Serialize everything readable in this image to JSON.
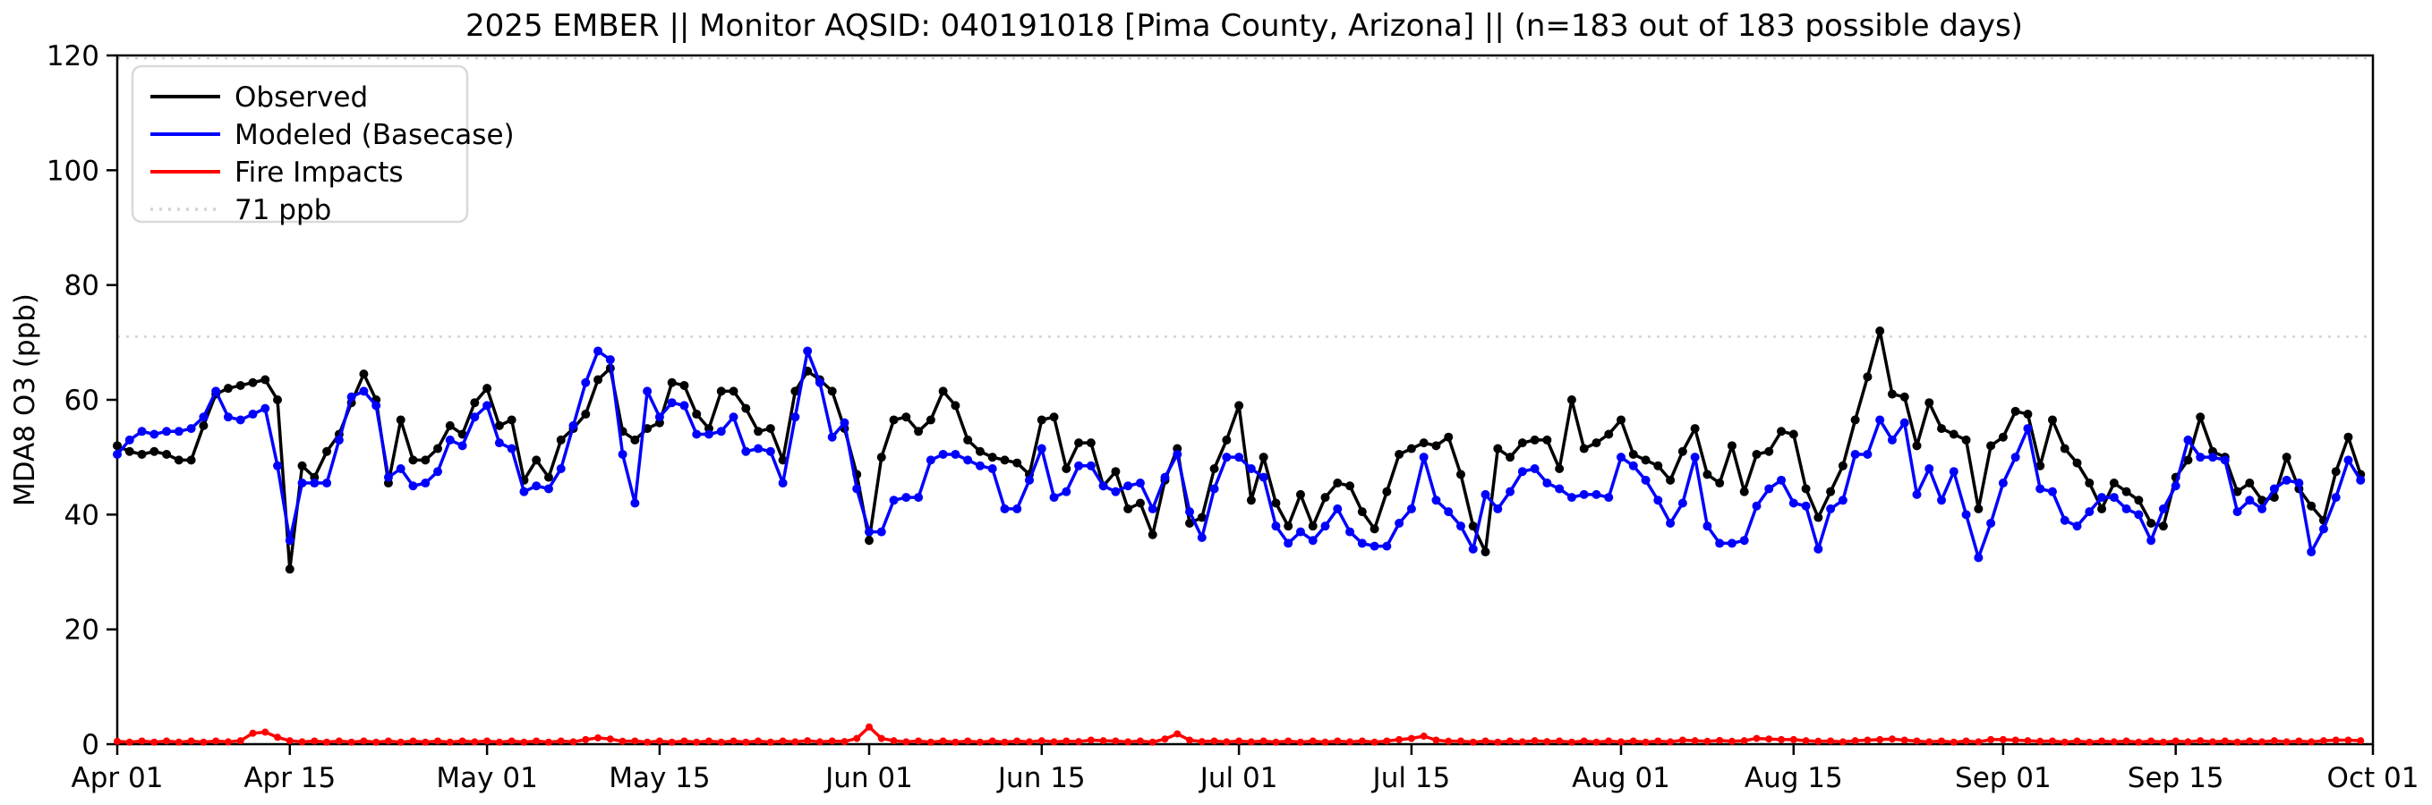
{
  "chart_data": {
    "type": "line",
    "title": "2025 EMBER || Monitor AQSID: 040191018 [Pima County, Arizona] || (n=183 out of 183 possible days)",
    "ylabel": "MDA8 O3 (ppb)",
    "xlabel": "",
    "ylim": [
      0,
      120
    ],
    "y_ticks": [
      0,
      20,
      40,
      60,
      80,
      100,
      120
    ],
    "x_start_date": "Apr 01",
    "x_end_date": "Sep 30",
    "x_total_days": 183,
    "x_ticks": [
      {
        "label": "Apr 01",
        "day": 0
      },
      {
        "label": "Apr 15",
        "day": 14
      },
      {
        "label": "May 01",
        "day": 30
      },
      {
        "label": "May 15",
        "day": 44
      },
      {
        "label": "Jun 01",
        "day": 61
      },
      {
        "label": "Jun 15",
        "day": 75
      },
      {
        "label": "Jul 01",
        "day": 91
      },
      {
        "label": "Jul 15",
        "day": 105
      },
      {
        "label": "Aug 01",
        "day": 122
      },
      {
        "label": "Aug 15",
        "day": 136
      },
      {
        "label": "Sep 01",
        "day": 153
      },
      {
        "label": "Sep 15",
        "day": 167
      },
      {
        "label": "Oct 01",
        "day": 183
      }
    ],
    "legend": {
      "position": "upper-left",
      "entries": [
        {
          "label": "Observed",
          "color": "#000000",
          "style": "solid"
        },
        {
          "label": "Modeled (Basecase)",
          "color": "#0000ff",
          "style": "solid"
        },
        {
          "label": "Fire Impacts",
          "color": "#ff0000",
          "style": "solid"
        },
        {
          "label": "71 ppb",
          "color": "#d3d3d3",
          "style": "dotted"
        }
      ]
    },
    "reference_lines": [
      {
        "value": 71,
        "label": "71 ppb",
        "color": "#d3d3d3",
        "style": "dotted"
      },
      {
        "value": 119.5,
        "label": "",
        "color": "#d3d3d3",
        "style": "dotted"
      }
    ],
    "grid": false,
    "series": [
      {
        "name": "Observed",
        "color": "#000000",
        "values": [
          52,
          51,
          50.5,
          51,
          50.5,
          49.5,
          49.5,
          55.5,
          61,
          62,
          62.5,
          63,
          63.5,
          60,
          30.5,
          48.5,
          46.5,
          51,
          54,
          59.5,
          64.5,
          60,
          45.5,
          56.5,
          49.5,
          49.5,
          51.5,
          55.5,
          54,
          59.5,
          62,
          55.5,
          56.5,
          46,
          49.5,
          46.5,
          53,
          55,
          57.5,
          63.5,
          65.5,
          54.5,
          53,
          55,
          56,
          63,
          62.5,
          57.5,
          55,
          61.5,
          61.5,
          58.5,
          54.5,
          55,
          49.5,
          61.5,
          65,
          63.5,
          61.5,
          55,
          47,
          35.5,
          50,
          56.5,
          57,
          54.5,
          56.5,
          61.5,
          59,
          53,
          51,
          50,
          49.5,
          49,
          47,
          56.5,
          57,
          48,
          52.5,
          52.5,
          45,
          47.5,
          41,
          42,
          36.5,
          46,
          51.5,
          38.5,
          39.5,
          48,
          53,
          59,
          42.5,
          50,
          42,
          38,
          43.5,
          38,
          43,
          45.5,
          45,
          40.5,
          37.5,
          44,
          50.5,
          51.5,
          52.5,
          52,
          53.5,
          47,
          38,
          33.5,
          51.5,
          50,
          52.5,
          53,
          53,
          48,
          60,
          51.5,
          52.5,
          54,
          56.5,
          50.5,
          49.5,
          48.5,
          46,
          51,
          55,
          47,
          45.5,
          52,
          44,
          50.5,
          51,
          54.5,
          54,
          44.5,
          39.5,
          44,
          48.5,
          56.5,
          64,
          72,
          61,
          60.5,
          52,
          59.5,
          55,
          54,
          53,
          41,
          52,
          53.5,
          58,
          57.5,
          48.5,
          56.5,
          51.5,
          49,
          45.5,
          41,
          45.5,
          44,
          42.5,
          38.5,
          38,
          46.5,
          49.5,
          57,
          51,
          50,
          44,
          45.5,
          42.5,
          43,
          50,
          44.5,
          41.5,
          39,
          47.5,
          53.5,
          47
        ]
      },
      {
        "name": "Modeled (Basecase)",
        "color": "#0000ff",
        "values": [
          50.5,
          53,
          54.5,
          54,
          54.5,
          54.5,
          55,
          57,
          61.5,
          57,
          56.5,
          57.5,
          58.5,
          48.5,
          35.5,
          45.5,
          45.5,
          45.5,
          53,
          60.5,
          61.5,
          59,
          46.5,
          48,
          45,
          45.5,
          47.5,
          53,
          52,
          57,
          59,
          52.5,
          51.5,
          44,
          45,
          44.5,
          48,
          55.5,
          63,
          68.5,
          67,
          50.5,
          42,
          61.5,
          57,
          59.5,
          59,
          54,
          54,
          54.5,
          57,
          51,
          51.5,
          51,
          45.5,
          57,
          68.5,
          63,
          53.5,
          56,
          44.5,
          37,
          37,
          42.5,
          43,
          43,
          49.5,
          50.5,
          50.5,
          49.5,
          48.5,
          48,
          41,
          41,
          46,
          51.5,
          43,
          44,
          48.5,
          48.5,
          45,
          44,
          45,
          45.5,
          41,
          46.5,
          50.5,
          40.5,
          36,
          44.5,
          50,
          50,
          48,
          46.5,
          38,
          35,
          37,
          35.5,
          38,
          41,
          37,
          35,
          34.5,
          34.5,
          38.5,
          41,
          50,
          42.5,
          40.5,
          38,
          34,
          43.5,
          41,
          44,
          47.5,
          48,
          45.5,
          44.5,
          43,
          43.5,
          43.5,
          43,
          50,
          48.5,
          46,
          42.5,
          38.5,
          42,
          50,
          38,
          35,
          35,
          35.5,
          41.5,
          44.5,
          46,
          42,
          41.5,
          34,
          41,
          42.5,
          50.5,
          50.5,
          56.5,
          53,
          56,
          43.5,
          48,
          42.5,
          47.5,
          40,
          32.5,
          38.5,
          45.5,
          50,
          55,
          44.5,
          44,
          39,
          38,
          40.5,
          43,
          43,
          41,
          40,
          35.5,
          41,
          45,
          53,
          50,
          50,
          49.5,
          40.5,
          42.5,
          41,
          44.5,
          46,
          45.5,
          33.5,
          37.5,
          43,
          49.5,
          46
        ]
      },
      {
        "name": "Fire Impacts",
        "color": "#ff0000",
        "values": [
          0.5,
          0.35,
          0.55,
          0.35,
          0.55,
          0.35,
          0.55,
          0.35,
          0.55,
          0.4,
          0.6,
          1.9,
          2.1,
          1.2,
          0.6,
          0.4,
          0.55,
          0.35,
          0.55,
          0.35,
          0.55,
          0.35,
          0.55,
          0.35,
          0.55,
          0.35,
          0.55,
          0.35,
          0.55,
          0.4,
          0.55,
          0.35,
          0.55,
          0.35,
          0.55,
          0.35,
          0.55,
          0.4,
          0.8,
          1.1,
          0.9,
          0.5,
          0.55,
          0.35,
          0.55,
          0.35,
          0.55,
          0.35,
          0.55,
          0.35,
          0.55,
          0.35,
          0.55,
          0.35,
          0.55,
          0.4,
          0.6,
          0.4,
          0.55,
          0.45,
          1.0,
          3.0,
          1.0,
          0.6,
          0.4,
          0.55,
          0.35,
          0.55,
          0.35,
          0.55,
          0.35,
          0.55,
          0.35,
          0.55,
          0.4,
          0.6,
          0.4,
          0.55,
          0.45,
          0.7,
          0.6,
          0.55,
          0.4,
          0.55,
          0.35,
          0.9,
          1.8,
          0.7,
          0.45,
          0.55,
          0.4,
          0.55,
          0.4,
          0.55,
          0.35,
          0.55,
          0.35,
          0.55,
          0.35,
          0.55,
          0.4,
          0.55,
          0.35,
          0.55,
          0.8,
          1.0,
          1.4,
          0.7,
          0.5,
          0.55,
          0.35,
          0.55,
          0.35,
          0.55,
          0.4,
          0.6,
          0.45,
          0.55,
          0.35,
          0.55,
          0.35,
          0.55,
          0.4,
          0.55,
          0.35,
          0.55,
          0.4,
          0.7,
          0.6,
          0.5,
          0.65,
          0.5,
          0.6,
          1.0,
          0.9,
          0.8,
          0.8,
          0.6,
          0.5,
          0.55,
          0.4,
          0.6,
          0.7,
          0.8,
          0.9,
          0.7,
          0.55,
          0.4,
          0.55,
          0.35,
          0.55,
          0.4,
          0.8,
          0.8,
          0.7,
          0.6,
          0.5,
          0.55,
          0.35,
          0.55,
          0.35,
          0.55,
          0.4,
          0.55,
          0.35,
          0.55,
          0.35,
          0.55,
          0.4,
          0.6,
          0.4,
          0.55,
          0.35,
          0.55,
          0.4,
          0.6,
          0.4,
          0.55,
          0.4,
          0.6,
          0.7,
          0.7,
          0.6
        ]
      }
    ],
    "style": {
      "marker_radius": 5,
      "red_marker_radius": 4,
      "line_width": 3.5,
      "axis_color": "#000000",
      "background": "#ffffff"
    }
  }
}
